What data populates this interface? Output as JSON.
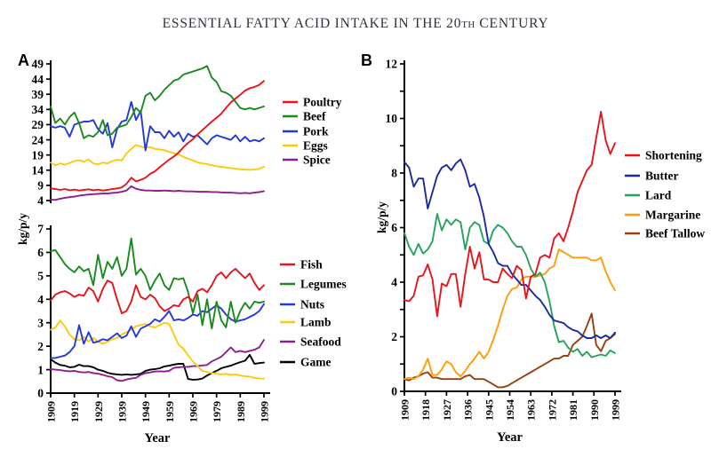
{
  "title": {
    "prefix": "ESSENTIAL FATTY ACID INTAKE IN THE 20",
    "superscript": "TH",
    "suffix": " CENTURY",
    "full": "ESSENTIAL FATTY ACID INTAKE IN THE 20TH CENTURY"
  },
  "panels": {
    "a_label": "A",
    "b_label": "B"
  },
  "colors": {
    "red": "#e8131b",
    "green": "#1a8a1e",
    "blue": "#2338dd",
    "gold": "#fcca0a",
    "purple": "#8e1d8e",
    "black": "#000000",
    "navy": "#1b2b9b",
    "sea_green": "#27a35d",
    "orange": "#ff9c0c",
    "brown": "#97400f"
  },
  "chart_data": [
    {
      "id": "a-top",
      "type": "line",
      "panel": "A",
      "ylabel": "kg/p/y",
      "xlabel": "",
      "ylim": [
        4,
        49
      ],
      "yticks": [
        4,
        9,
        14,
        19,
        24,
        29,
        34,
        39,
        44,
        49
      ],
      "xlim": [
        1909,
        1999
      ],
      "xticks": [
        1909,
        1919,
        1929,
        1939,
        1949,
        1959,
        1969,
        1979,
        1989,
        1999
      ],
      "show_xaxis": false,
      "grid": false,
      "legend_position": "right",
      "x": [
        1909,
        1911,
        1913,
        1915,
        1917,
        1919,
        1921,
        1923,
        1925,
        1927,
        1929,
        1931,
        1933,
        1935,
        1937,
        1939,
        1941,
        1943,
        1945,
        1947,
        1949,
        1951,
        1953,
        1955,
        1957,
        1959,
        1961,
        1963,
        1965,
        1967,
        1969,
        1971,
        1973,
        1975,
        1977,
        1979,
        1981,
        1983,
        1985,
        1987,
        1989,
        1991,
        1993,
        1995,
        1997,
        1999
      ],
      "series": [
        {
          "name": "Poultry",
          "color": "#e8131b",
          "values": [
            8,
            7.8,
            7.5,
            7.8,
            7.4,
            7.6,
            7.3,
            7.5,
            7.7,
            7.4,
            7.6,
            7.3,
            7.5,
            7.8,
            8.0,
            8.3,
            9.5,
            11.5,
            10.3,
            10.8,
            11.5,
            12.8,
            13.6,
            15.0,
            16.2,
            17.5,
            18.5,
            19.8,
            21.5,
            23.0,
            24.2,
            25.8,
            27.2,
            28.6,
            30.0,
            31.3,
            32.6,
            34.5,
            36.3,
            37.6,
            38.8,
            40.2,
            41.0,
            41.4,
            42.1,
            43.4
          ]
        },
        {
          "name": "Beef",
          "color": "#1a8a1e",
          "values": [
            35,
            29.5,
            31,
            29,
            31.5,
            33,
            29.5,
            24.5,
            25.5,
            25,
            26.5,
            30.5,
            25.5,
            26,
            28,
            28.5,
            29,
            31.5,
            34.5,
            33,
            38.5,
            39.5,
            37,
            38.5,
            40.5,
            42,
            43.5,
            44,
            45.5,
            46,
            46.5,
            47,
            47.5,
            48.3,
            44.5,
            43,
            40,
            39.5,
            38.5,
            36.5,
            34.5,
            34,
            34.5,
            34,
            34.5,
            35
          ]
        },
        {
          "name": "Pork",
          "color": "#2338dd",
          "values": [
            28.5,
            28,
            28.5,
            28,
            25,
            29,
            29.5,
            30,
            30,
            30.5,
            27.5,
            26,
            29.5,
            21.5,
            27.5,
            30,
            30.5,
            36.5,
            30.5,
            33.5,
            20.5,
            28.5,
            26.5,
            26.5,
            24.5,
            27,
            25,
            26.5,
            23.5,
            26,
            25,
            25.5,
            24,
            22.5,
            24.5,
            25.5,
            25,
            24.5,
            24,
            25.5,
            23.5,
            25,
            23.5,
            24,
            23.5,
            24.5
          ]
        },
        {
          "name": "Eggs",
          "color": "#fcca0a",
          "values": [
            16.5,
            15.6,
            16.2,
            15.8,
            16.4,
            17.0,
            17.3,
            16.8,
            17.5,
            16.2,
            15.9,
            16.5,
            16.2,
            17.0,
            17.4,
            17.2,
            19.5,
            21.0,
            22.3,
            21.8,
            21.4,
            21.6,
            21.0,
            20.8,
            20.6,
            20.0,
            19.6,
            19.2,
            18.4,
            17.8,
            17.2,
            16.6,
            16.2,
            16.0,
            15.6,
            15.3,
            15.1,
            14.9,
            14.7,
            14.5,
            14.3,
            14.2,
            14.1,
            14.2,
            14.4,
            15.2
          ]
        },
        {
          "name": "Spice",
          "color": "#8e1d8e",
          "values": [
            4.3,
            4.2,
            4.6,
            4.9,
            5.1,
            5.3,
            5.6,
            5.8,
            6.0,
            6.1,
            6.2,
            6.3,
            6.3,
            6.5,
            6.6,
            6.9,
            7.3,
            8.7,
            7.9,
            7.5,
            7.3,
            7.3,
            7.2,
            7.2,
            7.3,
            7.2,
            7.1,
            7.2,
            7.1,
            7.0,
            7.0,
            6.9,
            6.9,
            6.9,
            6.8,
            6.8,
            6.7,
            6.6,
            6.6,
            6.5,
            6.4,
            6.5,
            6.4,
            6.6,
            6.8,
            7.1
          ]
        }
      ]
    },
    {
      "id": "a-bottom",
      "type": "line",
      "panel": "A",
      "ylabel": "kg/p/y",
      "xlabel": "Year",
      "ylim": [
        0,
        7
      ],
      "yticks": [
        0,
        1,
        2,
        3,
        4,
        5,
        6,
        7
      ],
      "xlim": [
        1909,
        1999
      ],
      "xticks": [
        1909,
        1919,
        1929,
        1939,
        1949,
        1959,
        1969,
        1979,
        1989,
        1999
      ],
      "show_xaxis": true,
      "grid": false,
      "legend_position": "right",
      "x": [
        1909,
        1911,
        1913,
        1915,
        1917,
        1919,
        1921,
        1923,
        1925,
        1927,
        1929,
        1931,
        1933,
        1935,
        1937,
        1939,
        1941,
        1943,
        1945,
        1947,
        1949,
        1951,
        1953,
        1955,
        1957,
        1959,
        1961,
        1963,
        1965,
        1967,
        1969,
        1971,
        1973,
        1975,
        1977,
        1979,
        1981,
        1983,
        1985,
        1987,
        1989,
        1991,
        1993,
        1995,
        1997,
        1999
      ],
      "series": [
        {
          "name": "Fish",
          "color": "#e8131b",
          "values": [
            3.95,
            4.2,
            4.3,
            4.35,
            4.25,
            4.1,
            4.2,
            4.15,
            4.5,
            4.35,
            3.9,
            4.45,
            4.8,
            4.7,
            4.0,
            3.4,
            3.5,
            3.9,
            4.6,
            4.1,
            4.0,
            4.2,
            4.05,
            3.7,
            3.5,
            3.6,
            3.75,
            3.7,
            4.0,
            4.1,
            3.9,
            4.35,
            4.45,
            4.3,
            4.6,
            5.0,
            5.15,
            4.9,
            5.15,
            5.3,
            5.1,
            4.9,
            5.1,
            4.7,
            4.4,
            4.6
          ]
        },
        {
          "name": "Legumes",
          "color": "#1a8a1e",
          "values": [
            6.05,
            6.1,
            5.8,
            5.5,
            5.3,
            5.15,
            5.4,
            5.2,
            5.3,
            4.6,
            5.9,
            4.9,
            5.6,
            5.3,
            5.8,
            5.0,
            5.3,
            6.6,
            5.05,
            5.3,
            5.0,
            4.4,
            4.8,
            5.1,
            4.6,
            4.4,
            4.9,
            4.85,
            4.9,
            4.3,
            3.4,
            4.2,
            2.9,
            4.0,
            2.75,
            3.9,
            3.1,
            2.8,
            3.9,
            3.0,
            3.5,
            3.85,
            3.6,
            3.9,
            3.85,
            3.9
          ]
        },
        {
          "name": "Nuts",
          "color": "#2338dd",
          "values": [
            1.5,
            1.5,
            1.55,
            1.6,
            1.75,
            2.0,
            2.9,
            2.1,
            2.6,
            2.15,
            2.2,
            2.3,
            2.25,
            2.4,
            2.55,
            2.35,
            2.45,
            2.85,
            2.4,
            2.75,
            2.85,
            2.95,
            3.15,
            3.05,
            3.25,
            3.5,
            3.1,
            3.15,
            3.1,
            3.2,
            3.35,
            3.3,
            3.5,
            3.45,
            3.6,
            3.75,
            3.6,
            3.35,
            3.15,
            3.05,
            3.1,
            3.15,
            3.25,
            3.35,
            3.5,
            3.8
          ]
        },
        {
          "name": "Lamb",
          "color": "#fcca0a",
          "values": [
            2.7,
            2.8,
            3.1,
            2.85,
            2.5,
            2.3,
            2.25,
            2.4,
            2.2,
            2.35,
            2.2,
            2.1,
            2.2,
            2.3,
            2.35,
            2.5,
            2.6,
            2.7,
            2.85,
            2.9,
            2.95,
            2.85,
            2.8,
            2.9,
            3.0,
            2.95,
            2.5,
            2.05,
            1.9,
            1.6,
            1.35,
            1.15,
            0.95,
            0.9,
            0.85,
            0.83,
            0.8,
            0.82,
            0.78,
            0.8,
            0.75,
            0.72,
            0.7,
            0.65,
            0.62,
            0.62
          ]
        },
        {
          "name": "Seafood",
          "color": "#8e1d8e",
          "values": [
            1.02,
            1.0,
            0.98,
            0.95,
            0.93,
            0.95,
            0.9,
            0.88,
            0.9,
            0.85,
            0.83,
            0.78,
            0.72,
            0.68,
            0.55,
            0.52,
            0.58,
            0.62,
            0.65,
            0.78,
            0.85,
            0.88,
            0.92,
            0.93,
            0.92,
            0.95,
            1.08,
            1.1,
            1.12,
            1.12,
            1.15,
            1.15,
            1.18,
            1.2,
            1.35,
            1.45,
            1.55,
            1.75,
            1.95,
            1.75,
            1.8,
            1.75,
            1.8,
            1.85,
            1.95,
            2.27
          ]
        },
        {
          "name": "Game",
          "color": "#000000",
          "values": [
            1.44,
            1.3,
            1.2,
            1.17,
            1.1,
            1.12,
            1.21,
            1.15,
            1.15,
            1.1,
            1.0,
            0.95,
            0.87,
            0.82,
            0.8,
            0.78,
            0.8,
            0.78,
            0.8,
            0.82,
            0.95,
            1.0,
            1.02,
            1.06,
            1.14,
            1.17,
            1.22,
            1.25,
            1.25,
            0.6,
            0.57,
            0.58,
            0.62,
            0.75,
            0.85,
            0.95,
            1.06,
            1.12,
            1.17,
            1.25,
            1.32,
            1.38,
            1.63,
            1.25,
            1.28,
            1.3
          ]
        }
      ]
    },
    {
      "id": "b",
      "type": "line",
      "panel": "B",
      "ylabel": "kg/p/y",
      "xlabel": "Year",
      "ylim": [
        0,
        12
      ],
      "yticks": [
        0,
        1,
        2,
        3,
        4,
        5,
        6,
        7,
        8,
        9,
        10,
        11,
        12
      ],
      "ytick_label_step": 2,
      "xlim": [
        1909,
        1999
      ],
      "xticks": [
        1909,
        1918,
        1927,
        1936,
        1945,
        1954,
        1963,
        1972,
        1981,
        1990,
        1999
      ],
      "show_xaxis": true,
      "grid": false,
      "legend_position": "right",
      "x": [
        1909,
        1911,
        1913,
        1915,
        1917,
        1919,
        1921,
        1923,
        1925,
        1927,
        1929,
        1931,
        1933,
        1935,
        1937,
        1939,
        1941,
        1943,
        1945,
        1947,
        1949,
        1951,
        1953,
        1955,
        1957,
        1959,
        1961,
        1963,
        1965,
        1967,
        1969,
        1971,
        1973,
        1975,
        1977,
        1979,
        1981,
        1983,
        1985,
        1987,
        1989,
        1991,
        1993,
        1995,
        1997,
        1999
      ],
      "series": [
        {
          "name": "Shortening",
          "color": "#e8131b",
          "values": [
            3.35,
            3.3,
            3.5,
            4.2,
            4.25,
            4.65,
            4.1,
            2.75,
            3.95,
            3.85,
            4.3,
            4.3,
            3.1,
            4.3,
            5.3,
            4.5,
            5.1,
            4.1,
            4.1,
            4.0,
            4.0,
            4.5,
            4.3,
            4.15,
            4.6,
            4.45,
            3.4,
            4.2,
            4.3,
            4.9,
            5.0,
            4.9,
            5.6,
            5.8,
            5.5,
            6.0,
            6.6,
            7.3,
            7.7,
            8.1,
            8.3,
            9.3,
            10.25,
            9.2,
            8.7,
            9.1
          ]
        },
        {
          "name": "Butter",
          "color": "#1b2b9b",
          "values": [
            8.4,
            8.2,
            7.5,
            7.8,
            7.8,
            6.7,
            7.3,
            7.9,
            8.2,
            8.3,
            8.1,
            8.35,
            8.5,
            8.1,
            7.5,
            7.6,
            7.1,
            6.4,
            5.4,
            5.1,
            4.7,
            4.6,
            4.6,
            4.3,
            4.1,
            3.9,
            3.9,
            3.7,
            3.5,
            3.35,
            3.1,
            2.8,
            2.6,
            2.55,
            2.5,
            2.35,
            2.25,
            2.2,
            2.05,
            1.95,
            1.95,
            2.05,
            1.95,
            2.05,
            1.95,
            2.15
          ]
        },
        {
          "name": "Lard",
          "color": "#27a35d",
          "values": [
            5.8,
            5.3,
            5.0,
            5.4,
            5.05,
            5.2,
            5.5,
            6.5,
            5.9,
            6.3,
            6.1,
            6.3,
            6.2,
            5.2,
            6.0,
            6.2,
            6.1,
            5.5,
            5.4,
            5.9,
            6.1,
            6.0,
            5.8,
            5.5,
            5.3,
            5.3,
            5.0,
            4.5,
            4.2,
            4.35,
            4.0,
            3.3,
            2.4,
            1.8,
            1.85,
            1.6,
            1.45,
            1.55,
            1.3,
            1.45,
            1.25,
            1.3,
            1.35,
            1.3,
            1.5,
            1.4
          ]
        },
        {
          "name": "Margarine",
          "color": "#ff9c0c",
          "values": [
            0.45,
            0.5,
            0.45,
            0.55,
            0.8,
            1.2,
            0.6,
            0.6,
            0.8,
            1.1,
            1.0,
            0.7,
            0.55,
            0.75,
            1.0,
            1.2,
            1.45,
            1.2,
            1.45,
            1.9,
            2.4,
            3.0,
            3.5,
            3.75,
            3.8,
            4.1,
            4.2,
            4.2,
            4.2,
            4.25,
            4.3,
            4.5,
            4.6,
            5.2,
            5.1,
            5.0,
            4.9,
            4.9,
            4.9,
            4.9,
            4.8,
            4.8,
            4.9,
            4.4,
            4.0,
            3.7
          ]
        },
        {
          "name": "Beef Tallow",
          "color": "#97400f",
          "values": [
            0.45,
            0.4,
            0.5,
            0.55,
            0.65,
            0.7,
            0.5,
            0.5,
            0.45,
            0.45,
            0.45,
            0.45,
            0.45,
            0.55,
            0.6,
            0.45,
            0.45,
            0.45,
            0.35,
            0.25,
            0.15,
            0.15,
            0.2,
            0.3,
            0.4,
            0.5,
            0.6,
            0.7,
            0.8,
            0.9,
            1.0,
            1.1,
            1.2,
            1.2,
            1.3,
            1.3,
            1.7,
            1.85,
            2.0,
            2.4,
            2.85,
            1.7,
            1.47,
            1.85,
            1.95,
            2.1
          ]
        }
      ]
    }
  ]
}
